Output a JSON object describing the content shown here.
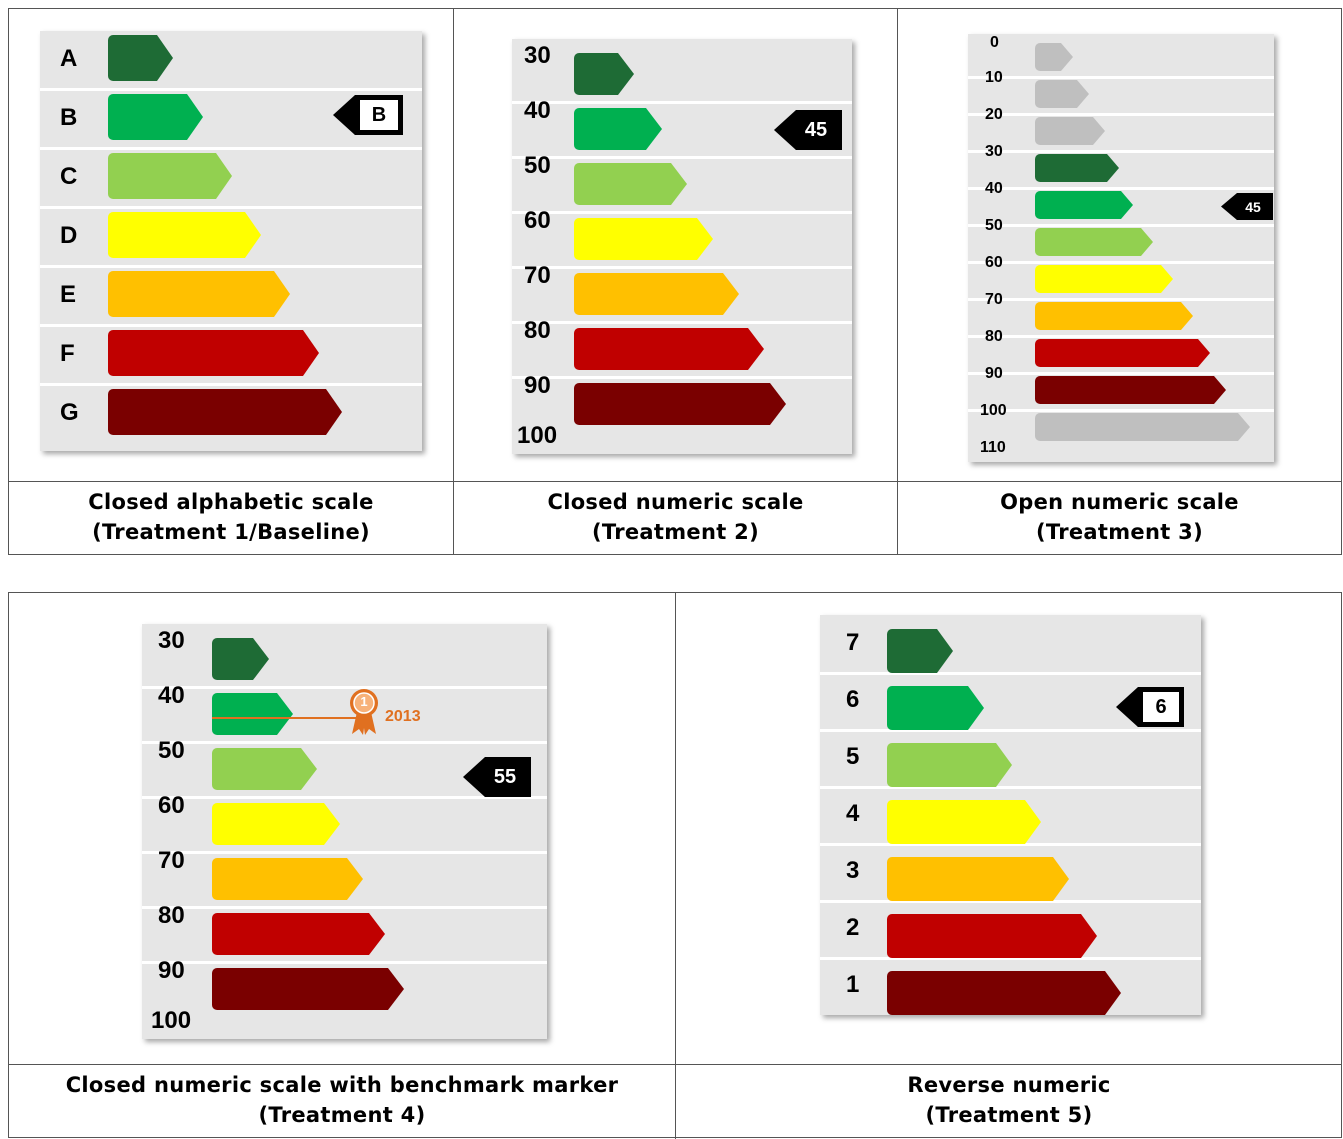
{
  "colors": {
    "dark_green": "#1e6b35",
    "green": "#00b050",
    "light_green": "#92d050",
    "yellow": "#ffff00",
    "orange": "#ffc000",
    "red": "#c00000",
    "dark_red": "#7a0000",
    "gray": "#bfbfbf",
    "benchmark_orange": "#e07020"
  },
  "treatments": [
    {
      "id": "t1",
      "caption": [
        "Closed alphabetic scale",
        "(Treatment 1/Baseline)"
      ],
      "labels": [
        "A",
        "B",
        "C",
        "D",
        "E",
        "F",
        "G"
      ],
      "marker": "B"
    },
    {
      "id": "t2",
      "caption": [
        "Closed numeric scale",
        "(Treatment 2)"
      ],
      "labels": [
        "30",
        "40",
        "50",
        "60",
        "70",
        "80",
        "90",
        "100"
      ],
      "marker": "45"
    },
    {
      "id": "t3",
      "caption": [
        "Open numeric scale",
        "(Treatment 3)"
      ],
      "labels": [
        "0",
        "10",
        "20",
        "30",
        "40",
        "50",
        "60",
        "70",
        "80",
        "90",
        "100",
        "110"
      ],
      "marker": "45"
    },
    {
      "id": "t4",
      "caption": [
        "Closed numeric scale with benchmark marker",
        "(Treatment 4)"
      ],
      "labels": [
        "30",
        "40",
        "50",
        "60",
        "70",
        "80",
        "90",
        "100"
      ],
      "marker": "55",
      "benchmark": {
        "rank": "1",
        "year": "2013",
        "icon": "award-ribbon-icon"
      }
    },
    {
      "id": "t5",
      "caption": [
        "Reverse numeric",
        "(Treatment 5)"
      ],
      "labels": [
        "7",
        "6",
        "5",
        "4",
        "3",
        "2",
        "1"
      ],
      "marker": "6"
    }
  ]
}
